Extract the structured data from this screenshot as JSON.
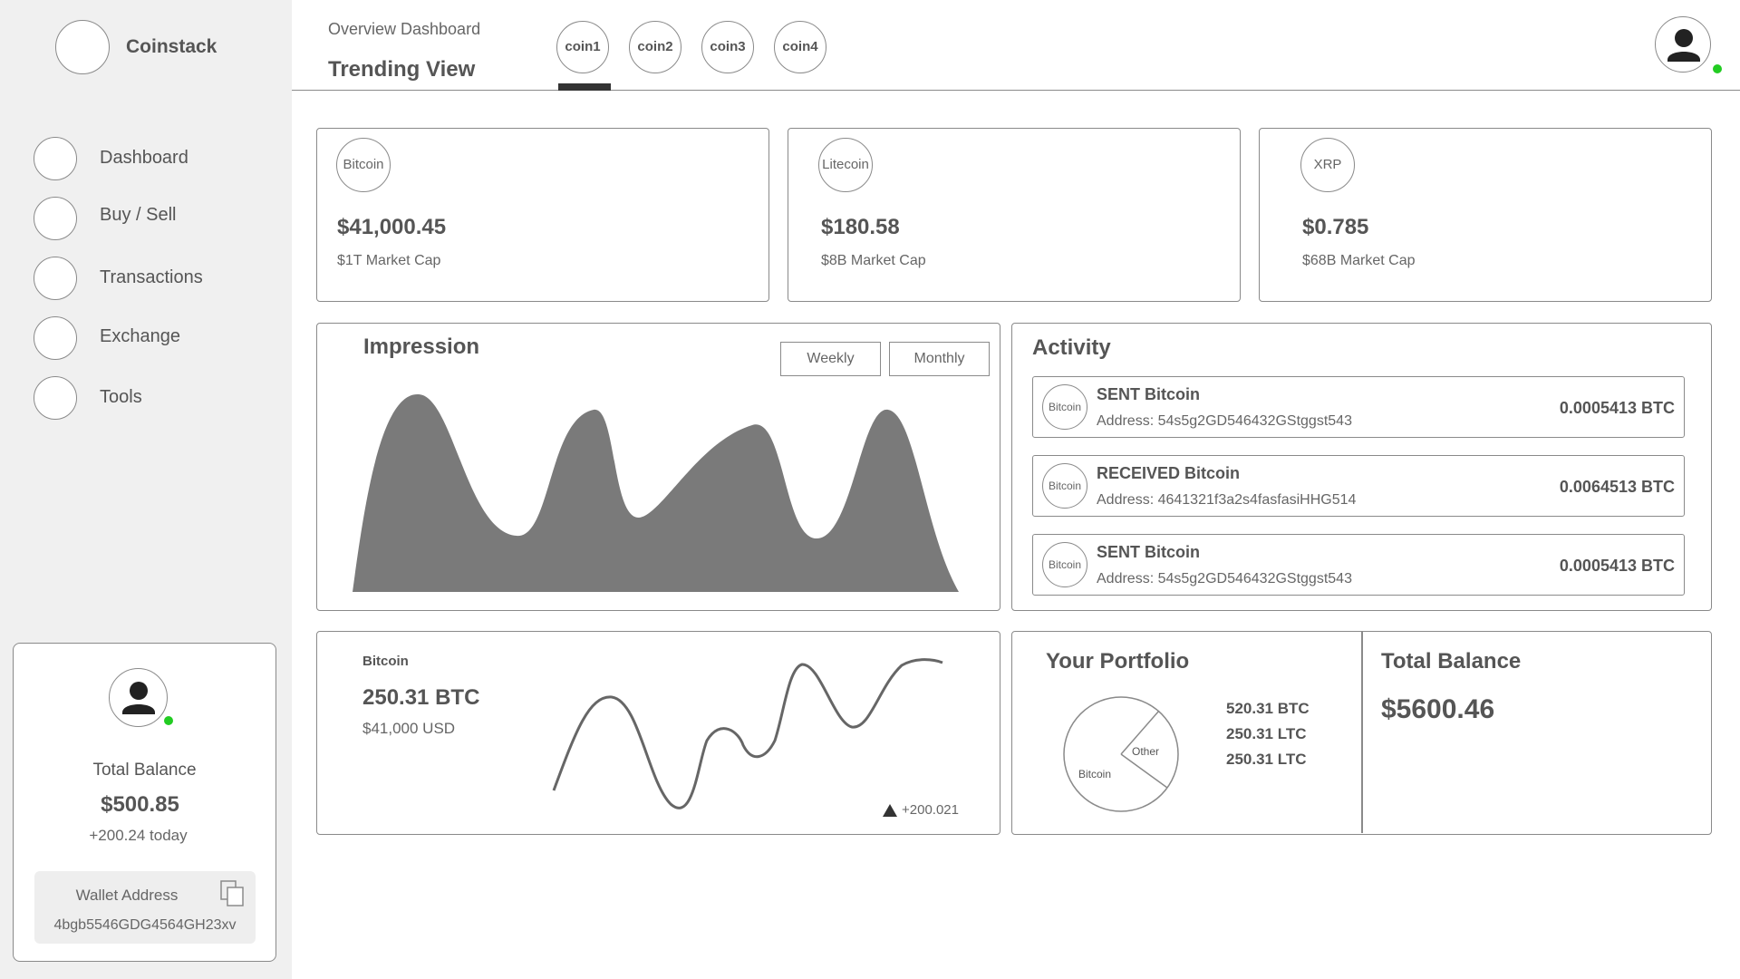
{
  "brand": {
    "name": "Coinstack"
  },
  "nav": [
    {
      "label": "Dashboard"
    },
    {
      "label": "Buy / Sell"
    },
    {
      "label": "Transactions"
    },
    {
      "label": "Exchange"
    },
    {
      "label": "Tools"
    }
  ],
  "wallet_card": {
    "label": "Total Balance",
    "amount": "$500.85",
    "change": "+200.24 today",
    "wallet_label": "Wallet Address",
    "wallet_address": "4bgb5546GDG4564GH23xv",
    "status_color": "#22cc22"
  },
  "header": {
    "subtitle": "Overview Dashboard",
    "title": "Trending View",
    "tabs": [
      "coin1",
      "coin2",
      "coin3",
      "coin4"
    ],
    "active_tab": 0
  },
  "coins": [
    {
      "badge": "Bitcoin",
      "price": "$41,000.45",
      "cap": "$1T Market Cap"
    },
    {
      "badge": "Litecoin",
      "price": "$180.58",
      "cap": "$8B Market Cap"
    },
    {
      "badge": "XRP",
      "price": "$0.785",
      "cap": "$68B Market Cap"
    }
  ],
  "impression": {
    "title": "Impression",
    "toggles": [
      "Weekly",
      "Monthly"
    ]
  },
  "activity": {
    "title": "Activity",
    "items": [
      {
        "icon": "Bitcoin",
        "title": "SENT Bitcoin",
        "address": "Address: 54s5g2GD546432GStggst543",
        "amount": "0.0005413 BTC"
      },
      {
        "icon": "Bitcoin",
        "title": "RECEIVED Bitcoin",
        "address": "Address: 4641321f3a2s4fasfasiHHG514",
        "amount": "0.0064513 BTC"
      },
      {
        "icon": "Bitcoin",
        "title": "SENT Bitcoin",
        "address": "Address: 54s5g2GD546432GStggst543",
        "amount": "0.0005413 BTC"
      }
    ]
  },
  "bitcoin_card": {
    "name": "Bitcoin",
    "amount": "250.31 BTC",
    "usd": "$41,000 USD",
    "change": "+200.021"
  },
  "portfolio": {
    "title": "Your Portfolio",
    "slices": [
      "Other",
      "Bitcoin"
    ],
    "legend": [
      "520.31 BTC",
      "250.31 LTC",
      "250.31 LTC"
    ]
  },
  "total_balance": {
    "title": "Total Balance",
    "amount": "$5600.46"
  }
}
